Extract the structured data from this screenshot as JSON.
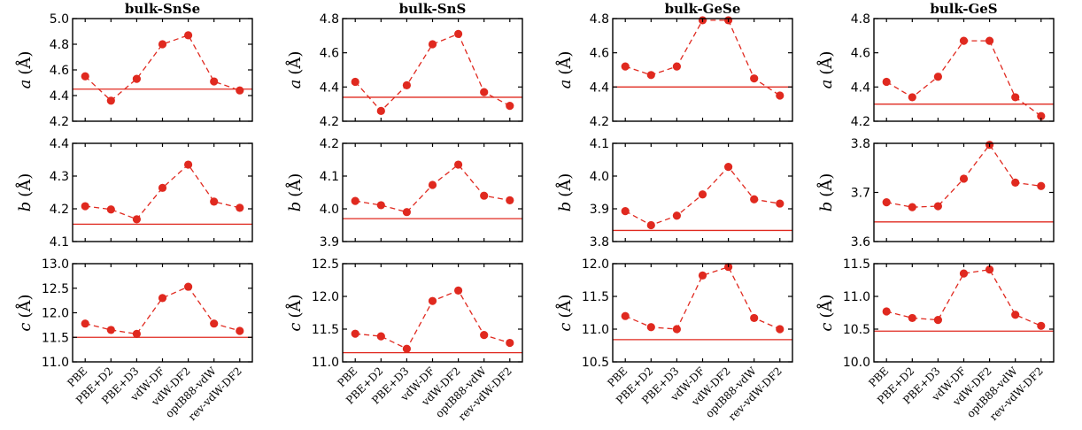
{
  "colors": {
    "marker": "#e0291f",
    "reference": "#e0291f",
    "axis": "#000000"
  },
  "chart_data": {
    "type": "line",
    "categories": [
      "PBE",
      "PBE+D2",
      "PBE+D3",
      "vdW-DF",
      "vdW-DF2",
      "optB88-vdW",
      "rev-vdW-DF2"
    ],
    "row_labels": [
      {
        "var": "a",
        "unit": "(Å)"
      },
      {
        "var": "b",
        "unit": "(Å)"
      },
      {
        "var": "c",
        "unit": "(Å)"
      }
    ],
    "columns": [
      {
        "title": "bulk-SnSe",
        "panels": [
          {
            "ylim": [
              4.2,
              5.0
            ],
            "yticks": [
              "4.2",
              "4.4",
              "4.6",
              "4.8",
              "5.0"
            ],
            "reference": 4.45,
            "values": [
              4.55,
              4.36,
              4.53,
              4.8,
              4.87,
              4.51,
              4.44
            ]
          },
          {
            "ylim": [
              4.1,
              4.4
            ],
            "yticks": [
              "4.1",
              "4.2",
              "4.3",
              "4.4"
            ],
            "reference": 4.153,
            "values": [
              4.208,
              4.198,
              4.168,
              4.264,
              4.335,
              4.222,
              4.203
            ]
          },
          {
            "ylim": [
              11.0,
              13.0
            ],
            "yticks": [
              "11.0",
              "11.5",
              "12.0",
              "12.5",
              "13.0"
            ],
            "reference": 11.5,
            "values": [
              11.78,
              11.65,
              11.57,
              12.3,
              12.53,
              11.78,
              11.63
            ]
          }
        ]
      },
      {
        "title": "bulk-SnS",
        "panels": [
          {
            "ylim": [
              4.2,
              4.8
            ],
            "yticks": [
              "4.2",
              "4.4",
              "4.6",
              "4.8"
            ],
            "reference": 4.34,
            "values": [
              4.43,
              4.26,
              4.41,
              4.65,
              4.71,
              4.37,
              4.29
            ]
          },
          {
            "ylim": [
              3.9,
              4.2
            ],
            "yticks": [
              "3.9",
              "4.0",
              "4.1",
              "4.2"
            ],
            "reference": 3.97,
            "values": [
              4.024,
              4.011,
              3.99,
              4.073,
              4.135,
              4.04,
              4.026
            ]
          },
          {
            "ylim": [
              11.0,
              12.5
            ],
            "yticks": [
              "11.0",
              "11.5",
              "12.0",
              "12.5"
            ],
            "reference": 11.14,
            "values": [
              11.43,
              11.39,
              11.2,
              11.93,
              12.09,
              11.41,
              11.29
            ]
          }
        ]
      },
      {
        "title": "bulk-GeSe",
        "panels": [
          {
            "ylim": [
              4.2,
              4.8
            ],
            "yticks": [
              "4.2",
              "4.4",
              "4.6",
              "4.8"
            ],
            "reference": 4.4,
            "values": [
              4.52,
              4.47,
              4.52,
              4.79,
              4.79,
              4.45,
              4.35
            ]
          },
          {
            "ylim": [
              3.8,
              4.1
            ],
            "yticks": [
              "3.8",
              "3.9",
              "4.0",
              "4.1"
            ],
            "reference": 3.834,
            "values": [
              3.893,
              3.85,
              3.879,
              3.944,
              4.028,
              3.929,
              3.916
            ]
          },
          {
            "ylim": [
              10.5,
              12.0
            ],
            "yticks": [
              "10.5",
              "11.0",
              "11.5",
              "12.0"
            ],
            "reference": 10.84,
            "values": [
              11.2,
              11.03,
              11.0,
              11.82,
              11.95,
              11.17,
              11.0
            ]
          }
        ]
      },
      {
        "title": "bulk-GeS",
        "panels": [
          {
            "ylim": [
              4.2,
              4.8
            ],
            "yticks": [
              "4.2",
              "4.4",
              "4.6",
              "4.8"
            ],
            "reference": 4.3,
            "values": [
              4.43,
              4.34,
              4.46,
              4.67,
              4.67,
              4.34,
              4.23
            ]
          },
          {
            "ylim": [
              3.6,
              3.8
            ],
            "yticks": [
              "3.6",
              "3.7",
              "3.8"
            ],
            "reference": 3.64,
            "values": [
              3.68,
              3.67,
              3.672,
              3.728,
              3.797,
              3.72,
              3.713
            ]
          },
          {
            "ylim": [
              10.0,
              11.5
            ],
            "yticks": [
              "10.0",
              "10.5",
              "11.0",
              "11.5"
            ],
            "reference": 10.47,
            "values": [
              10.77,
              10.67,
              10.64,
              11.35,
              11.41,
              10.72,
              10.55
            ]
          }
        ]
      }
    ]
  }
}
